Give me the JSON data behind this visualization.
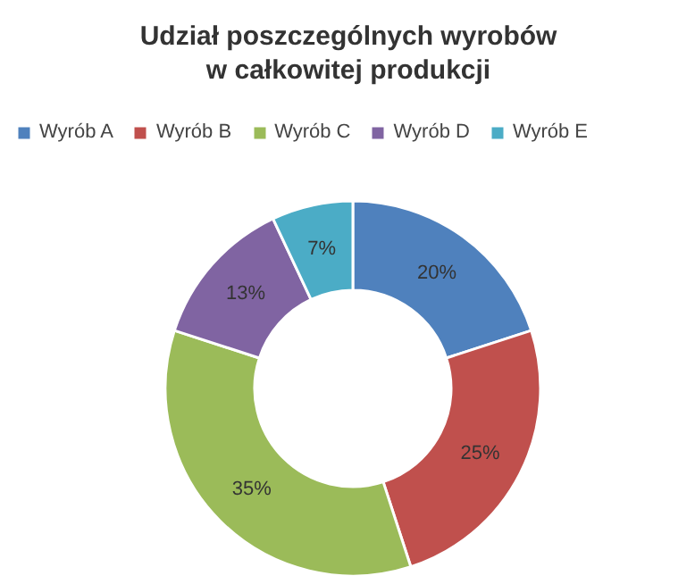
{
  "chart_data": {
    "type": "donut",
    "title": "Udział poszczególnych wyrobów\nw całkowitej produkcji",
    "categories": [
      "Wyrób A",
      "Wyrób B",
      "Wyrób C",
      "Wyrób D",
      "Wyrób E"
    ],
    "values": [
      20,
      25,
      35,
      13,
      7
    ],
    "colors": [
      "#4f81bd",
      "#c0504d",
      "#9bbb59",
      "#8064a2",
      "#4bacc6"
    ],
    "value_labels": [
      "20%",
      "25%",
      "35%",
      "13%",
      "7%"
    ],
    "legend": "top"
  }
}
